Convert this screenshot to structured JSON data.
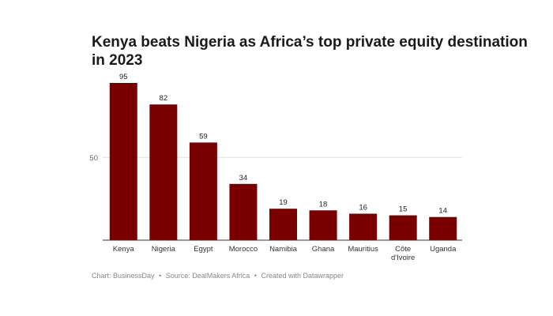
{
  "chart_data": {
    "type": "bar",
    "title": "Kenya beats Nigeria as Africa’s top private equity destination in 2023",
    "categories": [
      "Kenya",
      "Nigeria",
      "Egypt",
      "Morocco",
      "Namibia",
      "Ghana",
      "Mauritius",
      "Côte d'Ivoire",
      "Uganda"
    ],
    "category_lines": [
      [
        "Kenya"
      ],
      [
        "Nigeria"
      ],
      [
        "Egypt"
      ],
      [
        "Morocco"
      ],
      [
        "Namibia"
      ],
      [
        "Ghana"
      ],
      [
        "Mauritius"
      ],
      [
        "Côte",
        "d'Ivoire"
      ],
      [
        "Uganda"
      ]
    ],
    "values": [
      95,
      82,
      59,
      34,
      19,
      18,
      16,
      15,
      14
    ],
    "value_labels": [
      "95",
      "82",
      "59",
      "34",
      "19",
      "18",
      "16",
      "15",
      "14"
    ],
    "yticks": [
      50
    ],
    "ytick_labels": [
      "50"
    ],
    "ylim": [
      0,
      95
    ],
    "xlabel": "",
    "ylabel": "",
    "grid": true,
    "bar_color": "#7a0000",
    "gridline_color": "#e2e2e2",
    "baseline_color": "#333333"
  },
  "footer": {
    "chart_credit": "Chart: BusinessDay",
    "separator1": "•",
    "source": "Source: DealMakers Africa",
    "separator2": "•",
    "created_with": "Created with Datawrapper"
  }
}
